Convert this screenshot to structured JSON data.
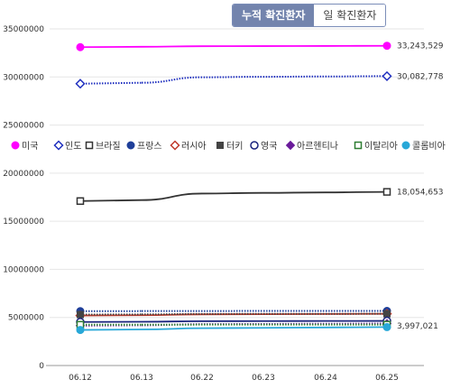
{
  "toggle": {
    "cumulative_label": "누적 확진환자",
    "daily_label": "일 확진환자"
  },
  "chart_data": {
    "type": "line",
    "ylim": [
      0,
      35000000
    ],
    "yticks": [
      0,
      5000000,
      10000000,
      15000000,
      20000000,
      25000000,
      30000000,
      35000000
    ],
    "ytick_labels": [
      "0",
      "5000000",
      "10000000",
      "15000000",
      "20000000",
      "25000000",
      "30000000",
      "35000000"
    ],
    "categories": [
      "06.12",
      "06.13",
      "06.22",
      "06.23",
      "06.24",
      "06.25"
    ],
    "legend_position": "middle",
    "series": [
      {
        "name": "미국",
        "color": "#ff00ff",
        "marker": "filled-circle",
        "dash": "solid",
        "values": [
          33100000,
          33140000,
          33200000,
          33210000,
          33225000,
          33243529
        ],
        "end_label": "33,243,529"
      },
      {
        "name": "인도",
        "color": "#1f2fbf",
        "marker": "hollow-diamond",
        "dash": "dotted",
        "values": [
          29300000,
          29400000,
          29970000,
          30020000,
          30050000,
          30082778
        ],
        "end_label": "30,082,778"
      },
      {
        "name": "브라질",
        "color": "#333333",
        "marker": "hollow-square",
        "dash": "solid",
        "values": [
          17100000,
          17200000,
          17880000,
          17950000,
          18000000,
          18054653
        ],
        "end_label": "18,054,653"
      },
      {
        "name": "프랑스",
        "color": "#1f3f99",
        "marker": "filled-circle",
        "dash": "dotted",
        "values": [
          5650000,
          5660000,
          5670000,
          5672000,
          5674000,
          5675000
        ],
        "end_label": ""
      },
      {
        "name": "러시아",
        "color": "#c0392b",
        "marker": "hollow-diamond",
        "dash": "solid",
        "values": [
          5200000,
          5230000,
          5320000,
          5340000,
          5360000,
          5380000
        ],
        "end_label": ""
      },
      {
        "name": "터키",
        "color": "#444444",
        "marker": "filled-square",
        "dash": "dotted",
        "values": [
          5300000,
          5320000,
          5360000,
          5370000,
          5375000,
          5380000
        ],
        "end_label": ""
      },
      {
        "name": "영국",
        "color": "#1a237e",
        "marker": "hollow-circle",
        "dash": "solid",
        "values": [
          4530000,
          4550000,
          4610000,
          4620000,
          4630000,
          4640000
        ],
        "end_label": ""
      },
      {
        "name": "아르헨티나",
        "color": "#6a1b9a",
        "marker": "filled-diamond",
        "dash": "dotted",
        "values": [
          4150000,
          4190000,
          4300000,
          4320000,
          4340000,
          4360000
        ],
        "end_label": ""
      },
      {
        "name": "이탈리아",
        "color": "#2e7d32",
        "marker": "hollow-square",
        "dash": "dotted",
        "values": [
          4240000,
          4245000,
          4252000,
          4253000,
          4254000,
          4255000
        ],
        "end_label": ""
      },
      {
        "name": "콜롬비아",
        "color": "#29a8d8",
        "marker": "filled-circle",
        "dash": "solid",
        "values": [
          3700000,
          3750000,
          3880000,
          3920000,
          3960000,
          3997021
        ],
        "end_label": "3,997,021"
      }
    ]
  }
}
